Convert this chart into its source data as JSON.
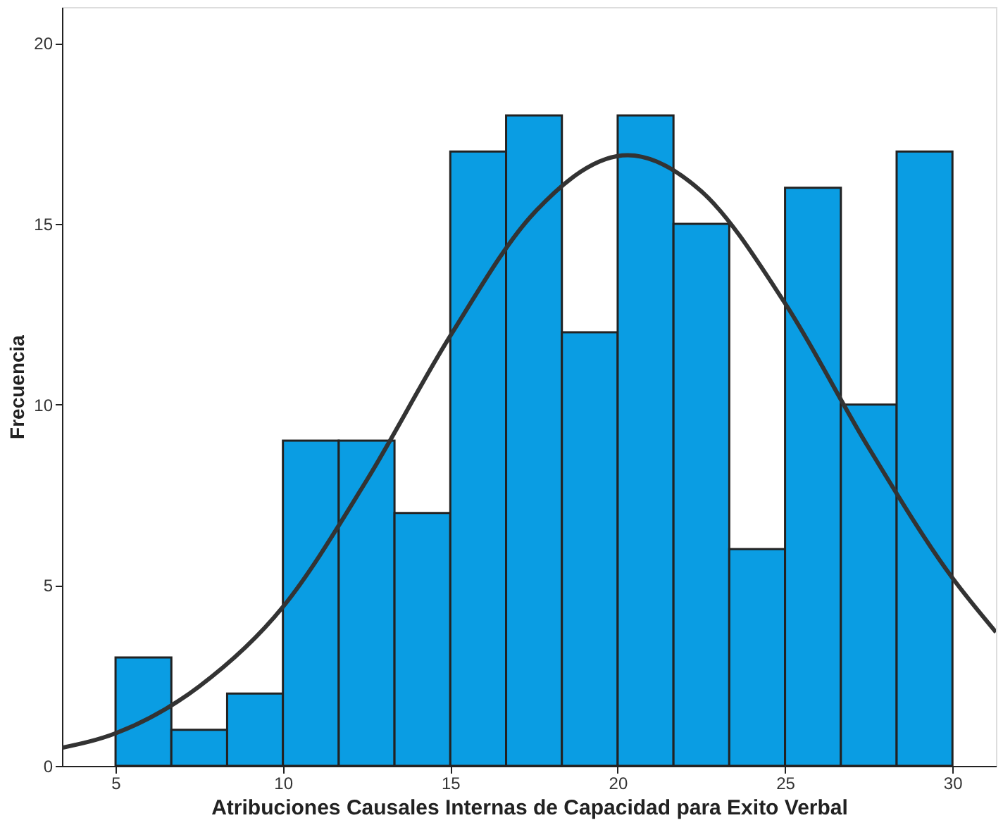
{
  "chart_data": {
    "type": "histogram",
    "xlabel": "Atribuciones Causales Internas de Capacidad para Exito Verbal",
    "ylabel": "Frecuencia",
    "bins": [
      5,
      6.667,
      8.333,
      10,
      11.667,
      13.333,
      15,
      16.667,
      18.333,
      20,
      21.667,
      23.333,
      25,
      26.667,
      28.333,
      30
    ],
    "values": [
      3,
      1,
      2,
      9,
      9,
      7,
      17,
      18,
      12,
      18,
      15,
      6,
      16,
      10,
      17
    ],
    "color": "#0a9de3",
    "xlim": [
      3.4,
      31.3
    ],
    "xticks": [
      5,
      10,
      15,
      20,
      25,
      30
    ],
    "ylim": [
      0,
      21
    ],
    "yticks": [
      0,
      5,
      10,
      15,
      20
    ],
    "grid": false,
    "series": [
      {
        "type": "line",
        "color": "#333333",
        "x": [
          3.4,
          5,
          7.5,
          10,
          12.5,
          15,
          17.5,
          20.3,
          22.5,
          25,
          27.5,
          30,
          31.3
        ],
        "values": [
          0.5,
          0.9,
          2.2,
          4.4,
          7.9,
          11.9,
          15.3,
          16.9,
          15.9,
          12.8,
          8.8,
          5.2,
          3.7
        ]
      }
    ]
  }
}
